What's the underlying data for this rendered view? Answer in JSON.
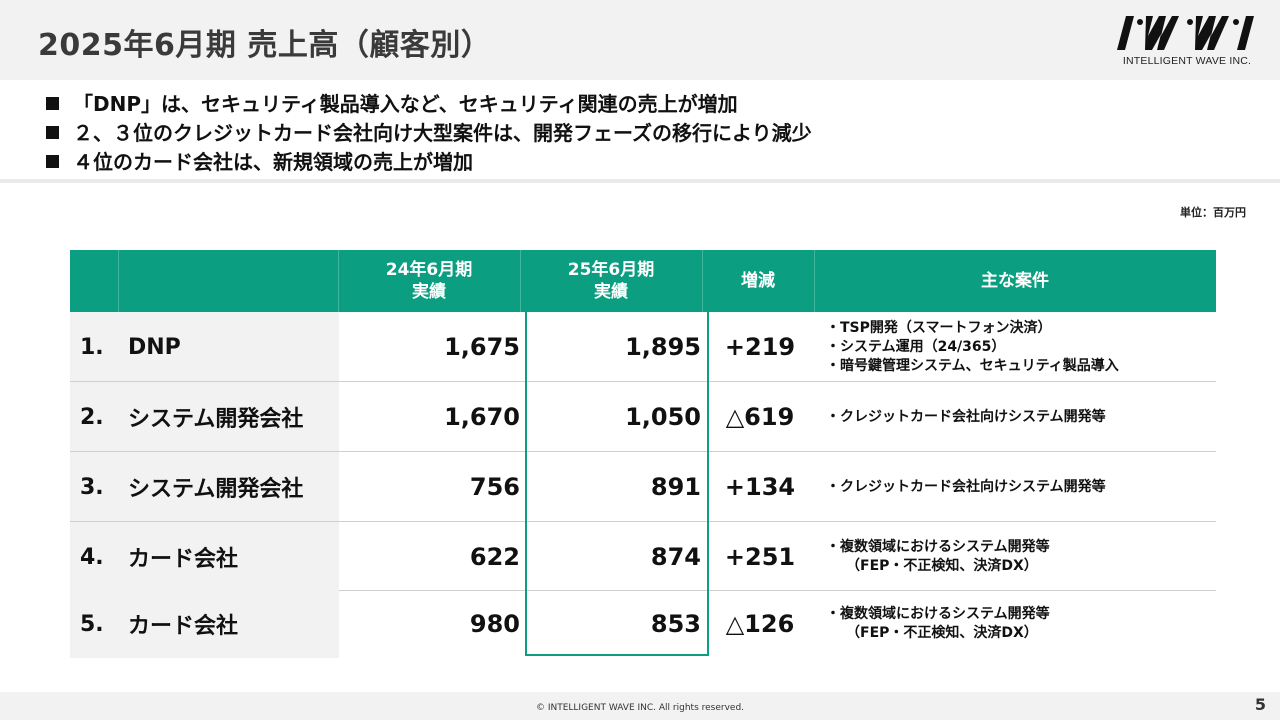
{
  "slide": {
    "title": "2025年6月期 売上高（顧客別）",
    "logo_mark": "IWI",
    "logo_text": "INTELLIGENT WAVE INC.",
    "bullets": [
      "「DNP」は、セキュリティ製品導入など、セキュリティ関連の売上が増加",
      "２、３位のクレジットカード会社向け大型案件は、開発フェーズの移行により減少",
      "４位のカード会社は、新規領域の売上が増加"
    ],
    "unit": "単位：百万円",
    "copyright": "© INTELLIGENT WAVE INC. All rights reserved.",
    "page_number": "5"
  },
  "table": {
    "headers": {
      "fy24_line1": "24年6月期",
      "fy24_line2": "実績",
      "fy25_line1": "25年6月期",
      "fy25_line2": "実績",
      "change": "増減",
      "cases": "主な案件"
    },
    "rows": [
      {
        "rank": "1.",
        "customer": "DNP",
        "fy24": "1,675",
        "fy25": "1,895",
        "change": "+219",
        "cases": [
          "・TSP開発（スマートフォン決済）",
          "・システム運用（24/365）",
          "・暗号鍵管理システム、セキュリティ製品導入"
        ]
      },
      {
        "rank": "2.",
        "customer": "システム開発会社",
        "fy24": "1,670",
        "fy25": "1,050",
        "change": "△619",
        "cases": [
          "・クレジットカード会社向けシステム開発等"
        ]
      },
      {
        "rank": "3.",
        "customer": "システム開発会社",
        "fy24": "756",
        "fy25": "891",
        "change": "+134",
        "cases": [
          "・クレジットカード会社向けシステム開発等"
        ]
      },
      {
        "rank": "4.",
        "customer": "カード会社",
        "fy24": "622",
        "fy25": "874",
        "change": "+251",
        "cases": [
          "・複数領域におけるシステム開発等",
          "（FEP・不正検知、決済DX）"
        ]
      },
      {
        "rank": "5.",
        "customer": "カード会社",
        "fy24": "980",
        "fy25": "853",
        "change": "△126",
        "cases": [
          "・複数領域におけるシステム開発等",
          "（FEP・不正検知、決済DX）"
        ]
      }
    ]
  },
  "colors": {
    "accent": "#0c9e80",
    "label_bg": "#f2f2f2"
  }
}
